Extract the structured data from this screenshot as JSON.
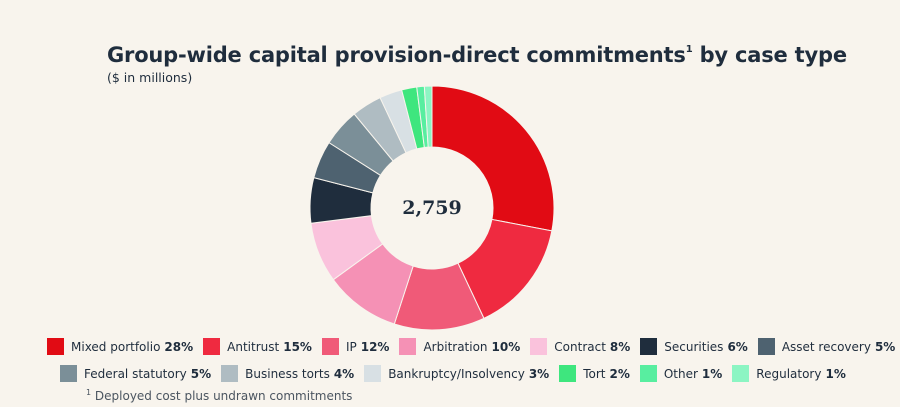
{
  "header": {
    "title": "Group-wide capital provision-direct commitments",
    "title_superscript": "1",
    "title_suffix": " by case type",
    "subtitle": "($ in millions)"
  },
  "chart_data": {
    "type": "pie",
    "variant": "donut",
    "title": "Group-wide capital provision-direct commitments by case type",
    "subtitle": "($ in millions)",
    "center_label": "2,759",
    "total": 2759,
    "unit": "%",
    "slices": [
      {
        "label": "Mixed portfolio",
        "value": 28,
        "pct_label": "28%",
        "color": "#e10b14"
      },
      {
        "label": "Antitrust",
        "value": 15,
        "pct_label": "15%",
        "color": "#ef2a40"
      },
      {
        "label": "IP",
        "value": 12,
        "pct_label": "12%",
        "color": "#f05a78"
      },
      {
        "label": "Arbitration",
        "value": 10,
        "pct_label": "10%",
        "color": "#f591b5"
      },
      {
        "label": "Contract",
        "value": 8,
        "pct_label": "8%",
        "color": "#fac2dc"
      },
      {
        "label": "Securities",
        "value": 6,
        "pct_label": "6%",
        "color": "#1f2d3d"
      },
      {
        "label": "Asset recovery",
        "value": 5,
        "pct_label": "5%",
        "color": "#4e6270"
      },
      {
        "label": "Federal statutory",
        "value": 5,
        "pct_label": "5%",
        "color": "#7b8f98"
      },
      {
        "label": "Business torts",
        "value": 4,
        "pct_label": "4%",
        "color": "#afbcc2"
      },
      {
        "label": "Bankruptcy/Insolvency",
        "value": 3,
        "pct_label": "3%",
        "color": "#d8e0e4"
      },
      {
        "label": "Tort",
        "value": 2,
        "pct_label": "2%",
        "color": "#3ee67e"
      },
      {
        "label": "Other",
        "value": 1,
        "pct_label": "1%",
        "color": "#58eea0"
      },
      {
        "label": "Regulatory",
        "value": 1,
        "pct_label": "1%",
        "color": "#8cf5c3"
      }
    ],
    "legend_rows": [
      [
        0,
        1,
        2,
        3,
        4,
        5,
        6
      ],
      [
        7,
        8,
        9,
        10,
        11,
        12
      ]
    ]
  },
  "footnote": {
    "marker": "1",
    "text": " Deployed cost plus undrawn commitments"
  }
}
